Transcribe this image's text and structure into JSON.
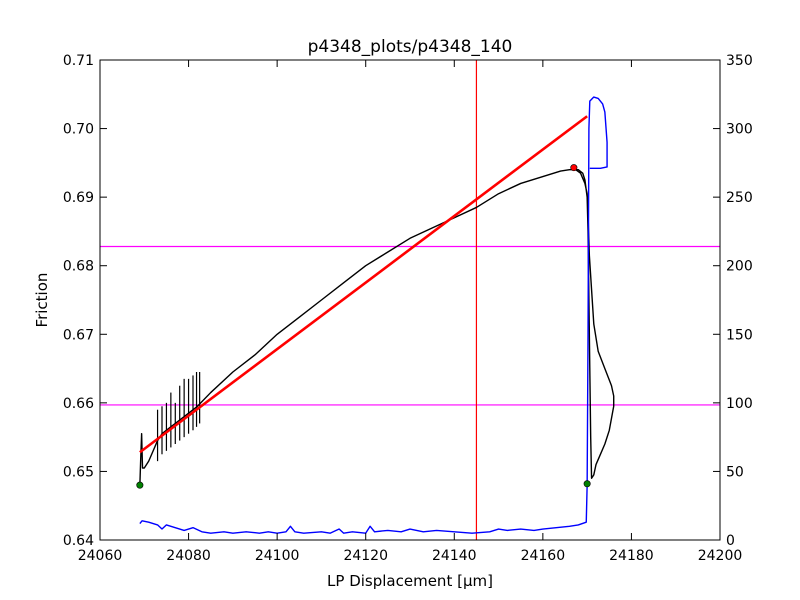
{
  "chart_data": {
    "type": "line",
    "title": "p4348_plots/p4348_140",
    "xlabel": "LP Displacement [μm]",
    "ylabel": "Friction",
    "xlim": [
      24060,
      24200
    ],
    "ylim": [
      0.64,
      0.71
    ],
    "y2lim": [
      0,
      350
    ],
    "x_ticks": [
      "24060",
      "24080",
      "24100",
      "24120",
      "24140",
      "24160",
      "24180",
      "24200"
    ],
    "y_ticks": [
      "0.64",
      "0.65",
      "0.66",
      "0.67",
      "0.68",
      "0.69",
      "0.70",
      "0.71"
    ],
    "y2_ticks": [
      "0",
      "50",
      "100",
      "150",
      "200",
      "250",
      "300",
      "350"
    ],
    "grid": false,
    "colors": {
      "friction": "#000000",
      "secondary": "#0000ff",
      "fit": "#ff0000",
      "vline": "#ff0000",
      "hlines": "#ff00ff",
      "markers_green": "#008000",
      "marker_red": "#ff0000"
    },
    "series": [
      {
        "axis": "left",
        "color": "#000000",
        "points": [
          [
            24069,
            0.648
          ],
          [
            24069.2,
            0.652
          ],
          [
            24069.4,
            0.6555
          ],
          [
            24069.6,
            0.6505
          ],
          [
            24070,
            0.6505
          ],
          [
            24071,
            0.6515
          ],
          [
            24072,
            0.653
          ],
          [
            24073,
            0.6545
          ],
          [
            24074,
            0.6555
          ],
          [
            24076,
            0.6565
          ],
          [
            24078,
            0.6575
          ],
          [
            24080,
            0.6585
          ],
          [
            24082,
            0.6595
          ],
          [
            24085,
            0.6615
          ],
          [
            24090,
            0.6645
          ],
          [
            24095,
            0.667
          ],
          [
            24100,
            0.67
          ],
          [
            24105,
            0.6725
          ],
          [
            24110,
            0.675
          ],
          [
            24115,
            0.6775
          ],
          [
            24120,
            0.68
          ],
          [
            24125,
            0.682
          ],
          [
            24130,
            0.684
          ],
          [
            24135,
            0.6855
          ],
          [
            24140,
            0.687
          ],
          [
            24145,
            0.6885
          ],
          [
            24150,
            0.6905
          ],
          [
            24155,
            0.692
          ],
          [
            24160,
            0.693
          ],
          [
            24164,
            0.6938
          ],
          [
            24166,
            0.694
          ],
          [
            24168,
            0.694
          ],
          [
            24169,
            0.6935
          ],
          [
            24169.5,
            0.6925
          ],
          [
            24170,
            0.69
          ],
          [
            24170.2,
            0.685
          ],
          [
            24170.4,
            0.675
          ],
          [
            24170.6,
            0.665
          ],
          [
            24170.8,
            0.655
          ],
          [
            24171,
            0.649
          ],
          [
            24171.5,
            0.6495
          ],
          [
            24172,
            0.651
          ],
          [
            24173,
            0.6525
          ],
          [
            24174,
            0.654
          ],
          [
            24175,
            0.656
          ],
          [
            24176,
            0.6595
          ],
          [
            24176,
            0.661
          ],
          [
            24175.5,
            0.6625
          ],
          [
            24174,
            0.665
          ],
          [
            24172.5,
            0.6675
          ],
          [
            24171.5,
            0.6715
          ],
          [
            24171,
            0.6765
          ],
          [
            24170.5,
            0.6815
          ],
          [
            24170.3,
            0.6855
          ],
          [
            24170.2,
            0.688
          ],
          [
            24170,
            0.6905
          ],
          [
            24169.5,
            0.692
          ],
          [
            24168.5,
            0.6935
          ],
          [
            24167,
            0.6942
          ]
        ],
        "spikes": [
          [
            24073,
            0.6515,
            0.659
          ],
          [
            24074,
            0.6525,
            0.6595
          ],
          [
            24075,
            0.653,
            0.66
          ],
          [
            24076,
            0.6535,
            0.6615
          ],
          [
            24077,
            0.654,
            0.66
          ],
          [
            24078,
            0.6545,
            0.6625
          ],
          [
            24079,
            0.655,
            0.6635
          ],
          [
            24080,
            0.6555,
            0.6635
          ],
          [
            24081,
            0.656,
            0.664
          ],
          [
            24081.8,
            0.6565,
            0.6645
          ],
          [
            24082.5,
            0.657,
            0.6645
          ]
        ]
      },
      {
        "axis": "right",
        "color": "#0000ff",
        "points": [
          [
            24069,
            12
          ],
          [
            24069.5,
            14
          ],
          [
            24071,
            13
          ],
          [
            24073,
            11
          ],
          [
            24074,
            8
          ],
          [
            24075,
            11
          ],
          [
            24077,
            9
          ],
          [
            24079,
            7
          ],
          [
            24081,
            9
          ],
          [
            24083,
            6
          ],
          [
            24085,
            5
          ],
          [
            24088,
            6
          ],
          [
            24090,
            5
          ],
          [
            24093,
            6
          ],
          [
            24096,
            5
          ],
          [
            24098,
            6
          ],
          [
            24100,
            5
          ],
          [
            24102,
            6
          ],
          [
            24103,
            10
          ],
          [
            24104,
            6
          ],
          [
            24106,
            5
          ],
          [
            24110,
            6
          ],
          [
            24112,
            5
          ],
          [
            24114,
            8
          ],
          [
            24115,
            5
          ],
          [
            24117,
            6
          ],
          [
            24120,
            5
          ],
          [
            24121,
            10
          ],
          [
            24122,
            6
          ],
          [
            24125,
            7
          ],
          [
            24128,
            6
          ],
          [
            24130,
            8
          ],
          [
            24133,
            6
          ],
          [
            24136,
            7
          ],
          [
            24140,
            6
          ],
          [
            24144,
            5
          ],
          [
            24148,
            6
          ],
          [
            24150,
            8
          ],
          [
            24152,
            7
          ],
          [
            24155,
            8
          ],
          [
            24158,
            7
          ],
          [
            24160,
            8
          ],
          [
            24163,
            9
          ],
          [
            24166,
            10
          ],
          [
            24168,
            11
          ],
          [
            24169.8,
            13
          ],
          [
            24170,
            40
          ],
          [
            24170.2,
            150
          ],
          [
            24170.4,
            300
          ],
          [
            24170.6,
            320
          ],
          [
            24171.5,
            323
          ],
          [
            24172.5,
            322
          ],
          [
            24173.5,
            318
          ],
          [
            24174,
            312
          ],
          [
            24174.5,
            290
          ],
          [
            24174.5,
            272
          ],
          [
            24173,
            271
          ],
          [
            24171.5,
            271
          ],
          [
            24170.6,
            271
          ]
        ]
      }
    ],
    "fit_line": {
      "start": [
        24069,
        0.6528
      ],
      "end": [
        24170,
        0.7018
      ]
    },
    "vline_x": 24145,
    "hlines_y": [
      0.6828,
      0.6597
    ],
    "markers": [
      {
        "x": 24069,
        "y": 0.648,
        "color": "#008000"
      },
      {
        "x": 24170,
        "y": 0.6482,
        "color": "#008000"
      },
      {
        "x": 24167,
        "y": 0.6943,
        "color": "#ff0000"
      }
    ]
  }
}
